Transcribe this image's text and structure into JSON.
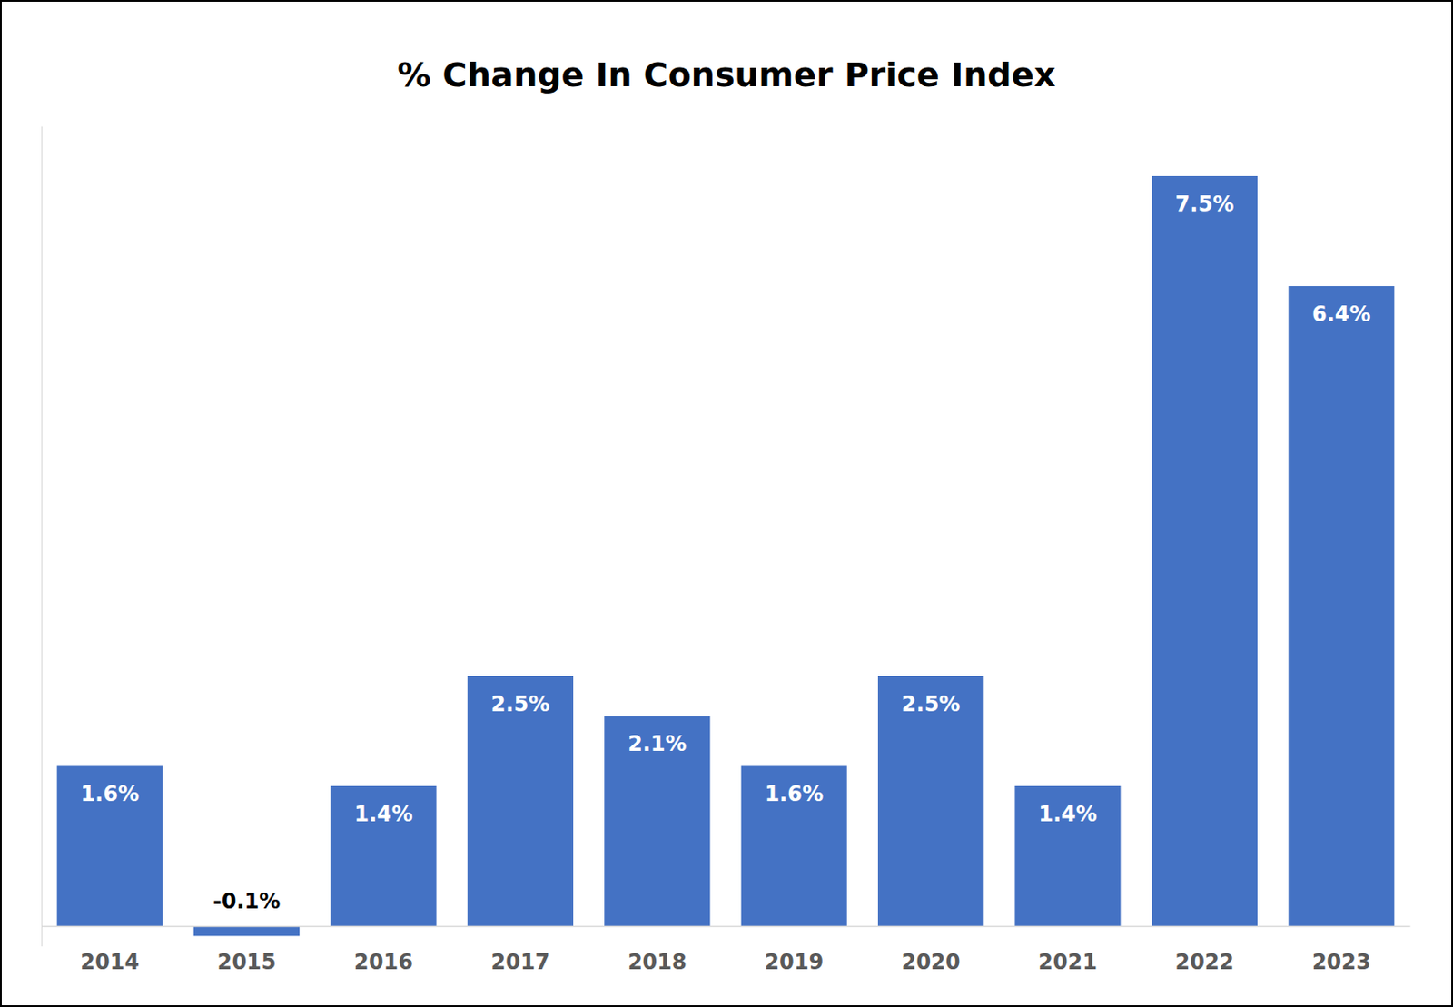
{
  "chart_data": {
    "type": "bar",
    "title": "% Change In Consumer Price Index",
    "categories": [
      "2014",
      "2015",
      "2016",
      "2017",
      "2018",
      "2019",
      "2020",
      "2021",
      "2022",
      "2023"
    ],
    "values": [
      1.6,
      -0.1,
      1.4,
      2.5,
      2.1,
      1.6,
      2.5,
      1.4,
      7.5,
      6.4
    ],
    "value_labels": [
      "1.6%",
      "-0.1%",
      "1.4%",
      "2.5%",
      "2.1%",
      "1.6%",
      "2.5%",
      "1.4%",
      "7.5%",
      "6.4%"
    ],
    "color": "#4472c4",
    "ylim": [
      -0.2,
      8
    ],
    "grid": false,
    "data_labels": true,
    "tick_labels": "x"
  }
}
